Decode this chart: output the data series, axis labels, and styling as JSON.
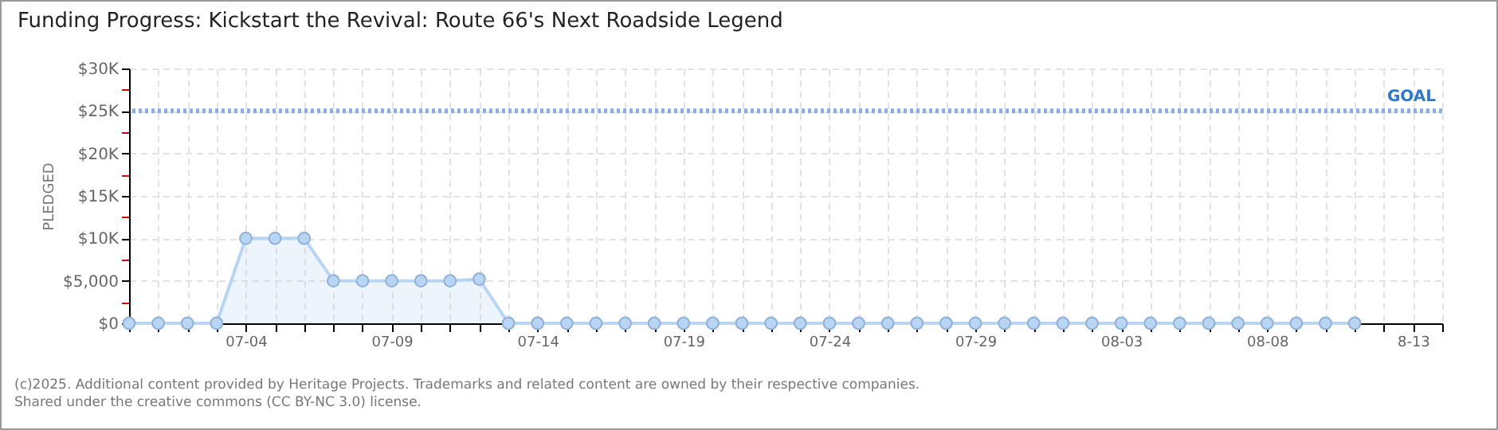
{
  "chart_data": {
    "type": "area",
    "title": "Funding Progress: Kickstart the Revival: Route 66's Next Roadside Legend",
    "ylabel": "PLEDGED",
    "x": [
      "--06-30",
      "--07-01",
      "--07-02",
      "--07-03",
      "--07-04",
      "--07-05",
      "--07-06",
      "--07-07",
      "--07-08",
      "--07-09",
      "--07-10",
      "--07-11",
      "--07-12",
      "--07-13",
      "--07-14",
      "--07-15",
      "--07-16",
      "--07-17",
      "--07-18",
      "--07-19",
      "--07-20",
      "--07-21",
      "--07-22",
      "--07-23",
      "--07-24",
      "--07-25",
      "--07-26",
      "--07-27",
      "--07-28",
      "--07-29",
      "--07-30",
      "--07-31",
      "--08-01",
      "--08-02",
      "--08-03",
      "--08-04",
      "--08-05",
      "--08-06",
      "--08-07",
      "--08-08",
      "--08-09",
      "--08-10",
      "--08-11"
    ],
    "series": [
      {
        "color": "#b9d5f4",
        "values": [
          0,
          0,
          0,
          0,
          10000,
          10000,
          10000,
          5000,
          5000,
          5000,
          5000,
          5000,
          5200,
          0,
          0,
          0,
          0,
          0,
          0,
          0,
          0,
          0,
          0,
          0,
          0,
          0,
          0,
          0,
          0,
          0,
          0,
          0,
          0,
          0,
          0,
          0,
          0,
          0,
          0,
          0,
          0,
          0,
          0
        ]
      }
    ],
    "xlim": [
      "--06-30",
      "--08-14"
    ],
    "xticks": [
      {
        "value": "--06-30",
        "label": null
      },
      {
        "value": "--07-01",
        "label": null
      },
      {
        "value": "--07-02",
        "label": null
      },
      {
        "value": "--07-03",
        "label": null
      },
      {
        "value": "--07-04",
        "label": "07-04"
      },
      {
        "value": "--07-05",
        "label": null
      },
      {
        "value": "--07-06",
        "label": null
      },
      {
        "value": "--07-07",
        "label": null
      },
      {
        "value": "--07-08",
        "label": null
      },
      {
        "value": "--07-09",
        "label": "07-09"
      },
      {
        "value": "--07-10",
        "label": null
      },
      {
        "value": "--07-11",
        "label": null
      },
      {
        "value": "--07-12",
        "label": null
      },
      {
        "value": "--07-13",
        "label": null
      },
      {
        "value": "--07-14",
        "label": "07-14"
      },
      {
        "value": "--07-15",
        "label": null
      },
      {
        "value": "--07-16",
        "label": null
      },
      {
        "value": "--07-17",
        "label": null
      },
      {
        "value": "--07-18",
        "label": null
      },
      {
        "value": "--07-19",
        "label": "07-19"
      },
      {
        "value": "--07-20",
        "label": null
      },
      {
        "value": "--07-21",
        "label": null
      },
      {
        "value": "--07-22",
        "label": null
      },
      {
        "value": "--07-23",
        "label": null
      },
      {
        "value": "--07-24",
        "label": "07-24"
      },
      {
        "value": "--07-25",
        "label": null
      },
      {
        "value": "--07-26",
        "label": null
      },
      {
        "value": "--07-27",
        "label": null
      },
      {
        "value": "--07-28",
        "label": null
      },
      {
        "value": "--07-29",
        "label": "07-29"
      },
      {
        "value": "--07-30",
        "label": null
      },
      {
        "value": "--07-31",
        "label": null
      },
      {
        "value": "--08-01",
        "label": null
      },
      {
        "value": "--08-02",
        "label": null
      },
      {
        "value": "--08-03",
        "label": "08-03"
      },
      {
        "value": "--08-04",
        "label": null
      },
      {
        "value": "--08-05",
        "label": null
      },
      {
        "value": "--08-06",
        "label": null
      },
      {
        "value": "--08-07",
        "label": null
      },
      {
        "value": "--08-08",
        "label": "08-08"
      },
      {
        "value": "--08-09",
        "label": null
      },
      {
        "value": "--08-10",
        "label": null
      },
      {
        "value": "--08-11",
        "label": null
      },
      {
        "value": "--08-12",
        "label": null
      },
      {
        "value": "--08-13",
        "label": "8-13"
      },
      {
        "value": "--08-14",
        "label": null
      }
    ],
    "ylim": [
      0,
      30000
    ],
    "yticks": [
      {
        "value": 0,
        "label": "$0"
      },
      {
        "value": 2500,
        "label": null
      },
      {
        "value": 5000,
        "label": "$5,000"
      },
      {
        "value": 7500,
        "label": null
      },
      {
        "value": 10000,
        "label": "$10K"
      },
      {
        "value": 12500,
        "label": null
      },
      {
        "value": 15000,
        "label": "$15K"
      },
      {
        "value": 17500,
        "label": null
      },
      {
        "value": 20000,
        "label": "$20K"
      },
      {
        "value": 22500,
        "label": null
      },
      {
        "value": 25000,
        "label": "$25K"
      },
      {
        "value": 27500,
        "label": null
      },
      {
        "value": 30000,
        "label": "$30K"
      }
    ],
    "ref_lines": [
      {
        "axis": "y",
        "value": 25000,
        "label": "GOAL",
        "color": "#8aaedc",
        "line_style": "dotted"
      }
    ],
    "grid": true,
    "marker": "circle",
    "annotations": [
      "(c)2025. Additional content provided by Heritage Projects. Trademarks and related content are owned by their respective companies.",
      "Shared under the creative commons (CC BY-NC 3.0) license."
    ]
  }
}
